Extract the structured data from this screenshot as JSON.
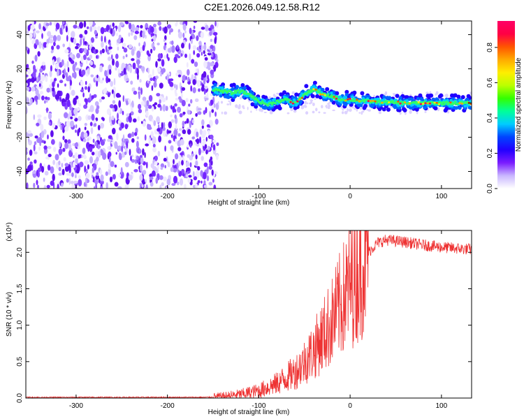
{
  "title": "C2E1.2026.049.12.58.R12",
  "chart_data": [
    {
      "type": "heatmap",
      "xlabel": "Height of straight line (km)",
      "ylabel": "Frequency (Hz)",
      "xlim": [
        -355,
        133
      ],
      "ylim": [
        -50,
        48
      ],
      "xticks": [
        -300,
        -200,
        -100,
        0,
        100
      ],
      "xtick_labels": [
        "-300",
        "-200",
        "-100",
        "0",
        "100"
      ],
      "yticks": [
        -40,
        -20,
        0,
        20,
        40
      ],
      "ytick_labels": [
        "-40",
        "-20",
        "0",
        "20",
        "40"
      ],
      "noise_region_x": [
        -355,
        -145
      ],
      "signal_path": [
        {
          "x": -150,
          "y": 8
        },
        {
          "x": -140,
          "y": 7
        },
        {
          "x": -130,
          "y": 6
        },
        {
          "x": -120,
          "y": 7
        },
        {
          "x": -110,
          "y": 5
        },
        {
          "x": -100,
          "y": 1
        },
        {
          "x": -90,
          "y": -1
        },
        {
          "x": -80,
          "y": 1
        },
        {
          "x": -70,
          "y": 2
        },
        {
          "x": -60,
          "y": 0
        },
        {
          "x": -50,
          "y": 5
        },
        {
          "x": -40,
          "y": 8
        },
        {
          "x": -30,
          "y": 5
        },
        {
          "x": -20,
          "y": 4
        },
        {
          "x": -10,
          "y": 2
        },
        {
          "x": 0,
          "y": 2
        },
        {
          "x": 20,
          "y": 1
        },
        {
          "x": 60,
          "y": 0
        },
        {
          "x": 100,
          "y": 0
        },
        {
          "x": 133,
          "y": 0
        }
      ],
      "colorbar": {
        "label": "Normalized spectral amplitude",
        "range": [
          0,
          0.95
        ],
        "ticks": [
          0.0,
          0.2,
          0.4,
          0.6,
          0.8
        ],
        "tick_labels": [
          "0.0",
          "0.2",
          "0.4",
          "0.6",
          "0.8"
        ],
        "colors": [
          "#ffffff",
          "#c9b6ff",
          "#7a1cff",
          "#2200ff",
          "#0044ff",
          "#00ccff",
          "#00ff99",
          "#33ff00",
          "#bbff00",
          "#ffee00",
          "#ffaa00",
          "#ff5500",
          "#ff0044",
          "#ff0066"
        ]
      }
    },
    {
      "type": "line",
      "xlabel": "Height of straight line (km)",
      "ylabel": "SNR (10 * v/v)",
      "y_multiplier": "(x10⁴)",
      "xlim": [
        -355,
        133
      ],
      "ylim": [
        0,
        2.3
      ],
      "xticks": [
        -300,
        -200,
        -100,
        0,
        100
      ],
      "xtick_labels": [
        "-300",
        "-200",
        "-100",
        "0",
        "100"
      ],
      "yticks": [
        0.0,
        0.5,
        1.0,
        1.5,
        2.0
      ],
      "ytick_labels": [
        "0.0",
        "0.5",
        "1.0",
        "1.5",
        "2.0"
      ],
      "color": "#ee3333",
      "series": [
        {
          "name": "SNR",
          "x": [
            -355,
            -300,
            -250,
            -200,
            -160,
            -140,
            -120,
            -100,
            -80,
            -70,
            -60,
            -50,
            -40,
            -30,
            -20,
            -10,
            0,
            10,
            20,
            30,
            40,
            60,
            80,
            100,
            120,
            133
          ],
          "y": [
            0.01,
            0.01,
            0.01,
            0.01,
            0.01,
            0.02,
            0.05,
            0.1,
            0.2,
            0.28,
            0.36,
            0.5,
            0.65,
            0.85,
            1.05,
            1.3,
            1.55,
            1.8,
            2.0,
            2.13,
            2.17,
            2.14,
            2.1,
            2.07,
            2.05,
            2.04
          ]
        }
      ]
    }
  ]
}
